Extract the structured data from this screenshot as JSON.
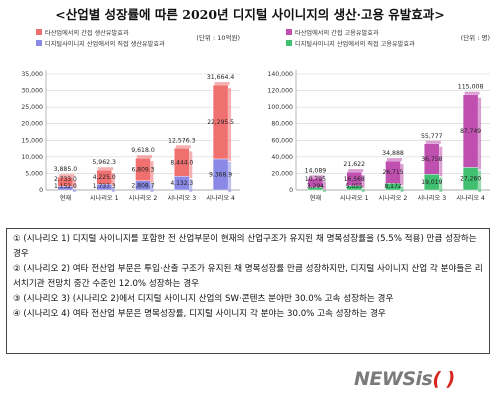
{
  "title": "<산업별 성장률에 따른 2020년 디지털 사이니지의 생산·고용 유발효과>",
  "charts": [
    {
      "unit": "(단위 : 10억원)",
      "legend": [
        "타산업에서의 간접 생산유발효과",
        "디지털사이니지 산업에서의 직접 생산유발효과"
      ],
      "yticks": [
        "0",
        "5,000",
        "10,000",
        "15,000",
        "20,000",
        "25,000",
        "30,000",
        "35,000"
      ],
      "colors": {
        "top": "#f07070",
        "bottom": "#8a8ae6"
      }
    },
    {
      "unit": "(단위 : 명)",
      "legend": [
        "타산업에서의 간접 고용유발효과",
        "디지털사이니지 산업에서의 직접 고용유발효과"
      ],
      "yticks": [
        "0",
        "20,000",
        "40,000",
        "60,000",
        "80,000",
        "100,000",
        "120,000",
        "140,000"
      ],
      "colors": {
        "top": "#c050b0",
        "bottom": "#40c070"
      }
    }
  ],
  "chart_data": [
    {
      "type": "bar",
      "stacked": true,
      "categories": [
        "현재",
        "시나리오 1",
        "시나리오 2",
        "시나리오 3",
        "시나리오 4"
      ],
      "series": [
        {
          "name": "디지털사이니지 산업에서의 직접 생산유발효과",
          "values": [
            1152.0,
            1737.3,
            2808.7,
            4132.3,
            9368.9
          ],
          "labels": [
            "1,152.0",
            "1,737.3",
            "2,808.7",
            "4,132.3",
            "9,368.9"
          ]
        },
        {
          "name": "타산업에서의 간접 생산유발효과",
          "values": [
            2733.0,
            4225.0,
            6809.3,
            8444.0,
            22295.5
          ],
          "labels": [
            "2,733.0",
            "4,225.0",
            "6,809.3",
            "8,444.0",
            "22,295.5"
          ]
        }
      ],
      "totals": [
        3885.0,
        5962.3,
        9618.0,
        12576.3,
        31664.4
      ],
      "total_labels": [
        "3,885.0",
        "5,962.3",
        "9,618.0",
        "12,576.3",
        "31,664.4"
      ],
      "ylim": [
        0,
        35000
      ]
    },
    {
      "type": "bar",
      "stacked": true,
      "categories": [
        "현재",
        "시나리오 1",
        "시나리오 2",
        "시나리오 3",
        "시나리오 4"
      ],
      "series": [
        {
          "name": "디지털사이니지 산업에서의 직접 고용유발효과",
          "values": [
            3294,
            5055,
            8172,
            19019,
            27260
          ],
          "labels": [
            "3,294",
            "5,055",
            "8,172",
            "19,019",
            "27,260"
          ]
        },
        {
          "name": "타산업에서의 간접 고용유발효과",
          "values": [
            10795,
            16568,
            26715,
            36758,
            87749
          ],
          "labels": [
            "10,795",
            "16,568",
            "26,715",
            "36,758",
            "87,749"
          ]
        }
      ],
      "totals": [
        14089,
        21622,
        34888,
        55777,
        115008
      ],
      "total_labels": [
        "14,089",
        "21,622",
        "34,888",
        "55,777",
        "115,008"
      ],
      "ylim": [
        0,
        140000
      ]
    }
  ],
  "scenarios": [
    "① (시나리오 1) 디지털 사이니지를 포함한 전 산업부문이 현재의 산업구조가 유지된 채 명목성장률을 (5.5% 적용) 만큼 성장하는 경우",
    "② (시나리오 2) 여타 전산업 부문은 투입·산출 구조가 유지된 채 명목성장률 만큼 성장하지만, 디지털 사이니지 산업 각 분야들은 리서치기관 전망치 중간 수준인 12.0% 성장하는 경우",
    "③ (시나리오 3) (시나리오 2)에서 디지털 사이니지 산업의 SW·콘텐츠 분야만 30.0% 고속 성장하는 경우",
    "④ (시나리오 4) 여타 전산업 부문은 명목성장률, 디지털 사이니지 각 분야는 30.0% 고속 성장하는 경우"
  ],
  "logo": {
    "a": "NEWSis",
    "b": "( )"
  }
}
